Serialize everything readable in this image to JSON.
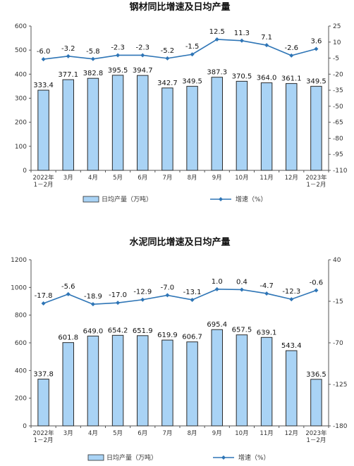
{
  "chart_data": [
    {
      "type": "bar",
      "title": "钢材同比增速及日均产量",
      "categories": [
        "2022年|1－2月",
        "3月",
        "4月",
        "5月",
        "6月",
        "7月",
        "8月",
        "9月",
        "10月",
        "11月",
        "12月",
        "2023年|1－2月"
      ],
      "series": [
        {
          "name": "日均产量（万吨）",
          "type": "bar",
          "axis": "left",
          "values": [
            333.4,
            377.1,
            382.8,
            395.5,
            394.7,
            342.7,
            349.5,
            387.3,
            370.5,
            364.0,
            361.1,
            349.5
          ]
        },
        {
          "name": "增速（%）",
          "type": "line",
          "axis": "right",
          "values": [
            -6.0,
            -3.2,
            -5.8,
            -2.3,
            -2.3,
            -5.2,
            -1.5,
            12.5,
            11.3,
            7.1,
            -2.6,
            3.6
          ]
        }
      ],
      "bar_labels": [
        "333.4",
        "377.1",
        "382.8",
        "395.5",
        "394.7",
        "342.7",
        "349.5",
        "387.3",
        "370.5",
        "364.0",
        "361.1",
        "349.5"
      ],
      "line_labels": [
        "-6.0",
        "-3.2",
        "-5.8",
        "-2.3",
        "-2.3",
        "-5.2",
        "-1.5",
        "12.5",
        "11.3",
        "7.1",
        "-2.6",
        "3.6"
      ],
      "ylim_left": [
        0,
        600
      ],
      "yticks_left": [
        "0",
        "100",
        "200",
        "300",
        "400",
        "500",
        "600"
      ],
      "ylim_right": [
        -110,
        25
      ],
      "yticks_right": [
        "25",
        "10",
        "-5",
        "-20",
        "-35",
        "-50",
        "-65",
        "-80",
        "-95",
        "-110"
      ],
      "yticks_right_values": [
        25,
        10,
        -5,
        -20,
        -35,
        -50,
        -65,
        -80,
        -95,
        -110
      ],
      "legend": [
        "日均产量（万吨）",
        "增速（%）"
      ],
      "legend_position": "bottom",
      "grid": false
    },
    {
      "type": "bar",
      "title": "水泥同比增速及日均产量",
      "categories": [
        "2022年|1－2月",
        "3月",
        "4月",
        "5月",
        "6月",
        "7月",
        "8月",
        "9月",
        "10月",
        "11月",
        "12月",
        "2023年|1－2月"
      ],
      "series": [
        {
          "name": "日均产量（万吨）",
          "type": "bar",
          "axis": "left",
          "values": [
            337.8,
            601.8,
            649.0,
            654.2,
            651.9,
            619.9,
            606.7,
            695.4,
            657.5,
            639.1,
            543.4,
            336.5
          ]
        },
        {
          "name": "增速（%）",
          "type": "line",
          "axis": "right",
          "values": [
            -17.8,
            -5.6,
            -18.9,
            -17.0,
            -12.9,
            -7.0,
            -13.1,
            1.0,
            0.4,
            -4.7,
            -12.3,
            -0.6
          ]
        }
      ],
      "bar_labels": [
        "337.8",
        "601.8",
        "649.0",
        "654.2",
        "651.9",
        "619.9",
        "606.7",
        "695.4",
        "657.5",
        "639.1",
        "543.4",
        "336.5"
      ],
      "line_labels": [
        "-17.8",
        "-5.6",
        "-18.9",
        "-17.0",
        "-12.9",
        "-7.0",
        "-13.1",
        "1.0",
        "0.4",
        "-4.7",
        "-12.3",
        "-0.6"
      ],
      "ylim_left": [
        0,
        1200
      ],
      "yticks_left": [
        "0",
        "200",
        "400",
        "600",
        "800",
        "1000",
        "1200"
      ],
      "ylim_right": [
        -180,
        40
      ],
      "yticks_right": [
        "40",
        "-15",
        "-70",
        "-125",
        "-180"
      ],
      "yticks_right_values": [
        40,
        -15,
        -70,
        -125,
        -180
      ],
      "legend": [
        "日均产量（万吨）",
        "增速（%）"
      ],
      "legend_position": "bottom",
      "grid": false
    }
  ],
  "colors": {
    "bar_fill": "#a9d3f5",
    "bar_stroke": "#2b2b2b",
    "line": "#2e75b6",
    "axis": "#555555"
  }
}
